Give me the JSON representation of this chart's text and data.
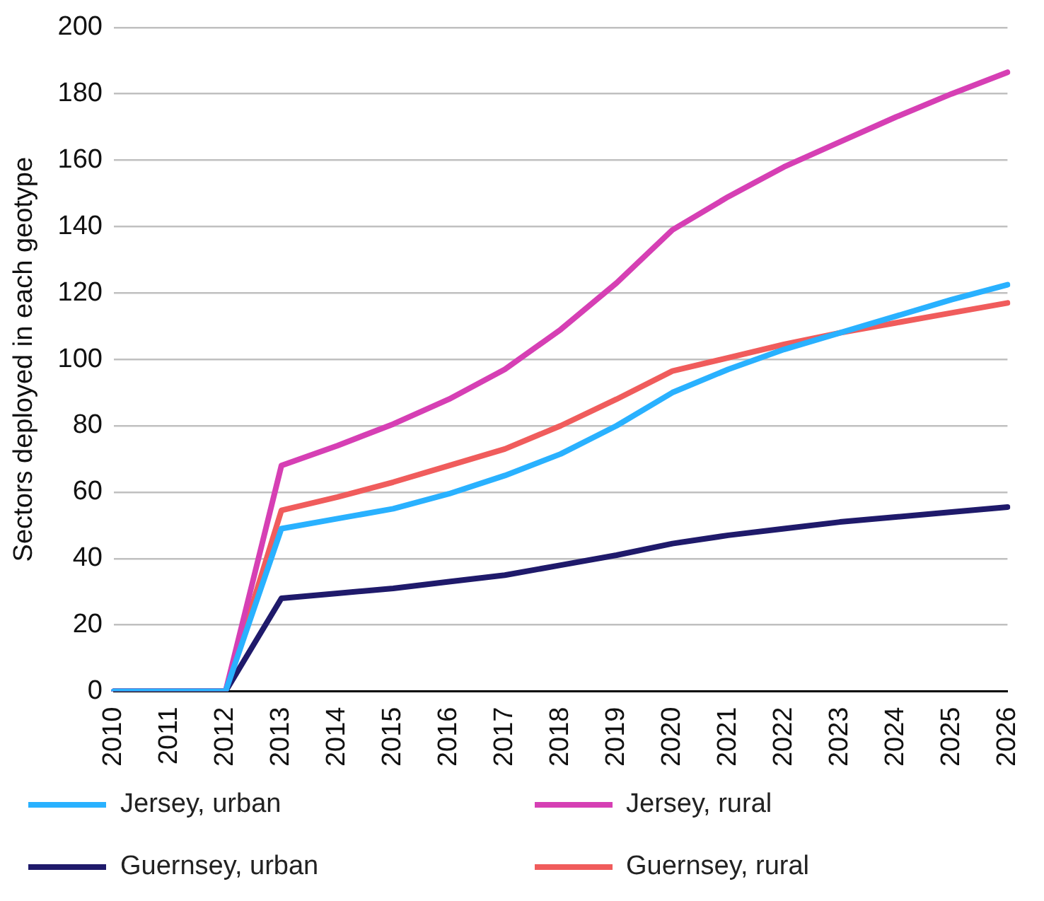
{
  "chart_data": {
    "type": "line",
    "ylabel": "Sectors deployed in each geotype",
    "categories": [
      "2010",
      "2011",
      "2012",
      "2013",
      "2014",
      "2015",
      "2016",
      "2017",
      "2018",
      "2019",
      "2020",
      "2021",
      "2022",
      "2023",
      "2024",
      "2025",
      "2026"
    ],
    "series": [
      {
        "name": "Jersey, urban",
        "color": "#29b1ff",
        "values": [
          0,
          0,
          0,
          49,
          52,
          55,
          59.5,
          65,
          71.5,
          80,
          90,
          97,
          103,
          108,
          113,
          118,
          122.5
        ]
      },
      {
        "name": "Jersey, rural",
        "color": "#d63fb4",
        "values": [
          0,
          0,
          0,
          68,
          74,
          80.5,
          88,
          97,
          109,
          123,
          139,
          149,
          158,
          165.5,
          173,
          180,
          186.5
        ]
      },
      {
        "name": "Guernsey, urban",
        "color": "#1f1a6b",
        "values": [
          0,
          0,
          0,
          28,
          29.5,
          31,
          33,
          35,
          38,
          41,
          44.5,
          47,
          49,
          51,
          52.5,
          54,
          55.5
        ]
      },
      {
        "name": "Guernsey, rural",
        "color": "#f05c5c",
        "values": [
          0,
          0,
          0,
          54.5,
          58.5,
          63,
          68,
          73,
          80,
          88,
          96.5,
          100.5,
          104.5,
          108,
          111,
          114,
          117
        ]
      }
    ],
    "ylim": [
      0,
      200
    ],
    "yticks": [
      0,
      20,
      40,
      60,
      80,
      100,
      120,
      140,
      160,
      180,
      200
    ],
    "grid": "y",
    "legend": "bottom",
    "marker": "none",
    "line_style": "solid"
  }
}
